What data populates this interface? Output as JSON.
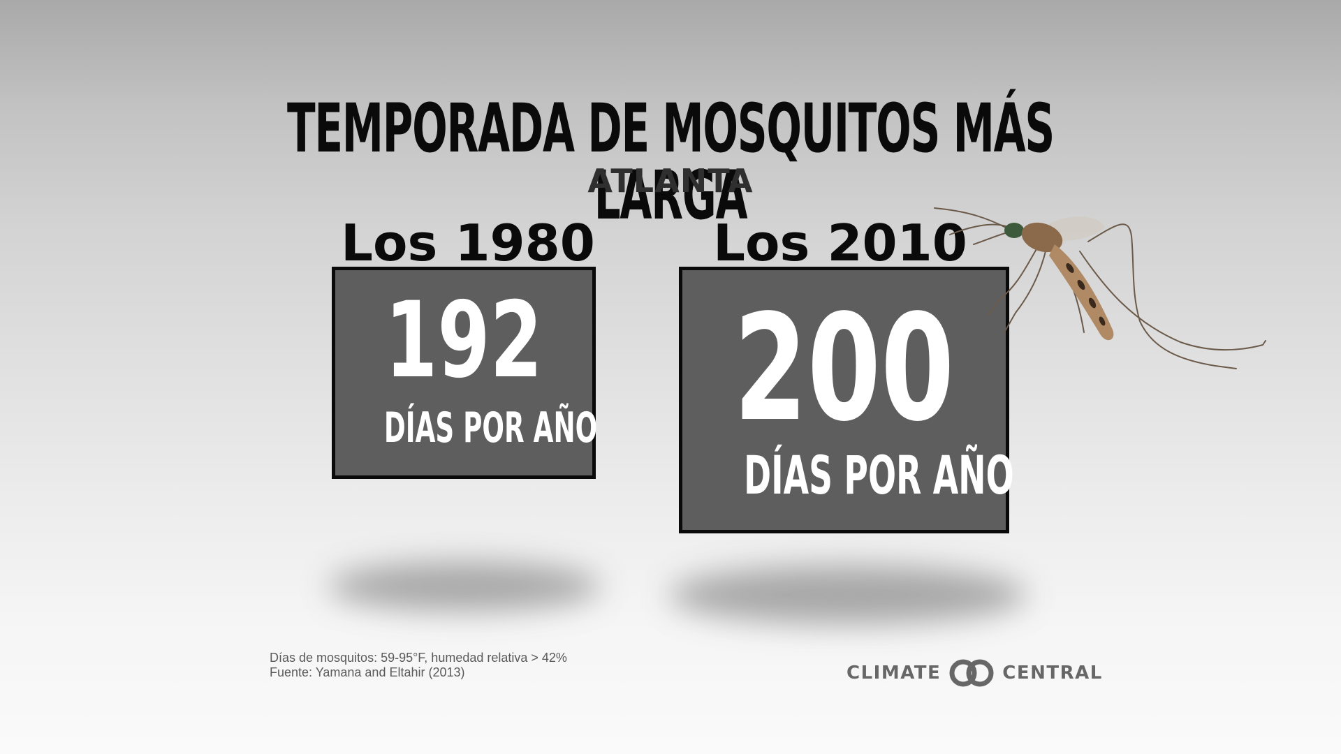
{
  "chart_data": {
    "type": "bar",
    "title": "TEMPORADA DE MOSQUITOS MÁS LARGA",
    "subtitle": "ATLANTA",
    "categories": [
      "Los 1980",
      "Los 2010"
    ],
    "values": [
      192,
      200
    ],
    "value_labels": [
      "192",
      "200"
    ],
    "unit_label": "DÍAS POR AÑO"
  },
  "footnote": {
    "line1": "Días de mosquitos: 59-95°F, humedad relativa > 42%",
    "line2": "Fuente: Yamana and Eltahir (2013)"
  },
  "logo": {
    "left_text": "CLIMATE",
    "right_text": "CENTRAL"
  },
  "colors": {
    "box_fill": "#5f5e5f",
    "box_border": "#0a0a0a",
    "title": "#0a0a0a",
    "logo": "#676767"
  },
  "icons": {
    "logo_mark": "climate-central-rings-icon",
    "illustration": "mosquito-icon"
  }
}
